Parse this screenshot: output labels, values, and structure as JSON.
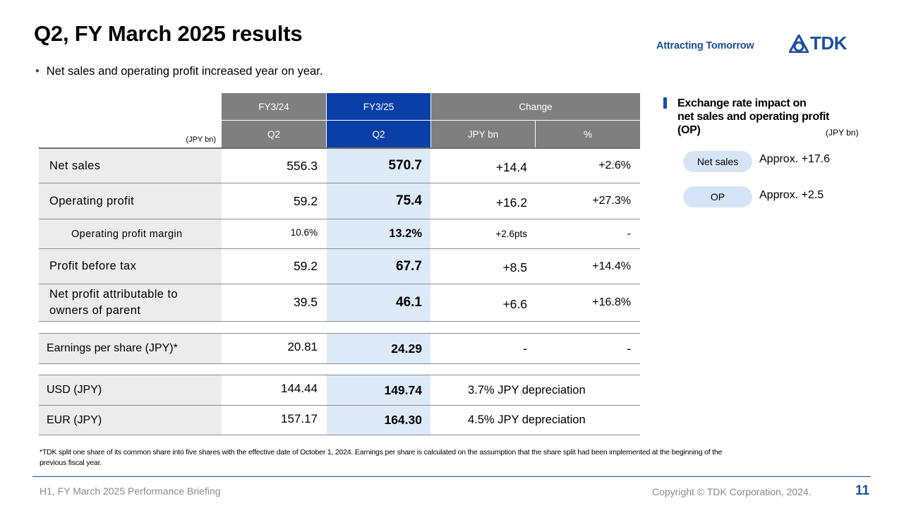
{
  "header": {
    "title": "Q2, FY March 2025 results",
    "tagline": "Attracting Tomorrow",
    "logo_text": "TDK"
  },
  "bullet": "Net sales and operating profit increased year on year.",
  "table": {
    "unit": "(JPY bn)",
    "headers": {
      "fy24": "FY3/24",
      "fy25": "FY3/25",
      "change": "Change",
      "q2_a": "Q2",
      "q2_b": "Q2",
      "jpybn": "JPY bn",
      "pct": "%"
    },
    "rows": [
      {
        "label": "Net sales",
        "fy24": "556.3",
        "fy25": "570.7",
        "chg": "+14.4",
        "pct": "+2.6%"
      },
      {
        "label": "Operating profit",
        "fy24": "59.2",
        "fy25": "75.4",
        "chg": "+16.2",
        "pct": "+27.3%"
      },
      {
        "label": "Operating profit margin",
        "fy24": "10.6%",
        "fy25": "13.2%",
        "chg": "+2.6pts",
        "pct": "-"
      },
      {
        "label": "Profit before tax",
        "fy24": "59.2",
        "fy25": "67.7",
        "chg": "+8.5",
        "pct": "+14.4%"
      },
      {
        "label_line1": "Net profit attributable to",
        "label_line2": "owners of parent",
        "fy24": "39.5",
        "fy25": "46.1",
        "chg": "+6.6",
        "pct": "+16.8%"
      }
    ],
    "eps": {
      "label": "Earnings per share (JPY)*",
      "fy24": "20.81",
      "fy25": "24.29",
      "chg": "-",
      "pct": "-"
    },
    "fx": [
      {
        "label": "USD (JPY)",
        "fy24": "144.44",
        "fy25": "149.74",
        "note": "3.7% JPY depreciation"
      },
      {
        "label": "EUR (JPY)",
        "fy24": "157.17",
        "fy25": "164.30",
        "note": "4.5% JPY depreciation"
      }
    ]
  },
  "panel": {
    "title_line1": "Exchange rate impact on",
    "title_line2": "net sales and operating profit",
    "title_line3": "(OP)",
    "unit": "(JPY bn)",
    "items": [
      {
        "label": "Net sales",
        "value": "Approx. +17.6"
      },
      {
        "label": "OP",
        "value": "Approx. +2.5"
      }
    ]
  },
  "footnote": "*TDK split one share of its common share into five shares with the effective date of October 1, 2024. Earnings per share is calculated on the assumption that the share split had been implemented at the beginning of the previous fiscal year.",
  "footer": {
    "left": "H1, FY March 2025 Performance Briefing",
    "copyright": "Copyright  © TDK Corporation, 2024.",
    "page": "11"
  },
  "colors": {
    "brand_blue": "#1a4f9c",
    "header_gray": "#7f7f7f",
    "header_blue": "#0a3fa8",
    "highlight": "#ddeaf8"
  }
}
